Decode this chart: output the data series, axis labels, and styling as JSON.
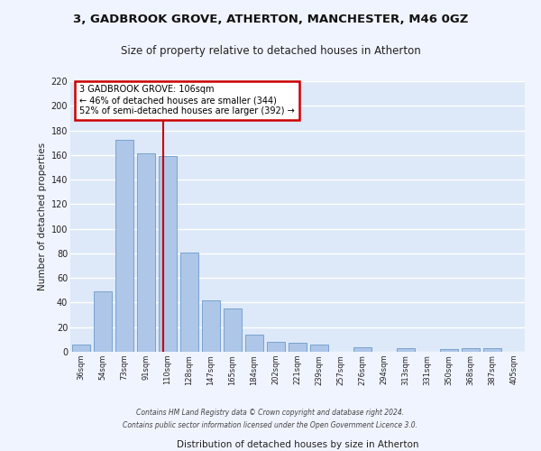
{
  "title_line1": "3, GADBROOK GROVE, ATHERTON, MANCHESTER, M46 0GZ",
  "title_line2": "Size of property relative to detached houses in Atherton",
  "xlabel": "Distribution of detached houses by size in Atherton",
  "ylabel": "Number of detached properties",
  "bar_labels": [
    "36sqm",
    "54sqm",
    "73sqm",
    "91sqm",
    "110sqm",
    "128sqm",
    "147sqm",
    "165sqm",
    "184sqm",
    "202sqm",
    "221sqm",
    "239sqm",
    "257sqm",
    "276sqm",
    "294sqm",
    "313sqm",
    "331sqm",
    "350sqm",
    "368sqm",
    "387sqm",
    "405sqm"
  ],
  "bar_values": [
    6,
    49,
    172,
    161,
    159,
    81,
    42,
    35,
    14,
    8,
    7,
    6,
    0,
    4,
    0,
    3,
    0,
    2,
    3,
    3,
    0
  ],
  "bar_color": "#aec6e8",
  "bar_edge_color": "#5a8fc2",
  "bg_color": "#dde8f8",
  "grid_color": "#ffffff",
  "annotation_box_text": "3 GADBROOK GROVE: 106sqm\n← 46% of detached houses are smaller (344)\n52% of semi-detached houses are larger (392) →",
  "annotation_box_color": "#ffffff",
  "annotation_box_edge_color": "#cc0000",
  "vline_color": "#cc0000",
  "ylim": [
    0,
    220
  ],
  "yticks": [
    0,
    20,
    40,
    60,
    80,
    100,
    120,
    140,
    160,
    180,
    200,
    220
  ],
  "footer_line1": "Contains HM Land Registry data © Crown copyright and database right 2024.",
  "footer_line2": "Contains public sector information licensed under the Open Government Licence 3.0.",
  "fig_bg_color": "#f0f4ff"
}
